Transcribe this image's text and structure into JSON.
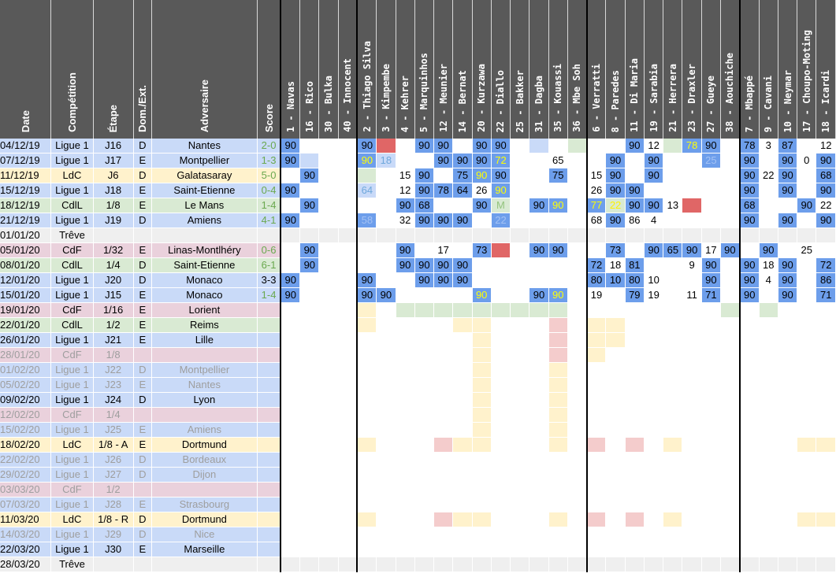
{
  "headers": {
    "date": "Date",
    "competition": "Compétition",
    "etape": "Étape",
    "domext": "Dom./Ext.",
    "adversaire": "Adversaire",
    "score": "Score"
  },
  "players": [
    "1 - Navas",
    "16 - Rico",
    "30 - Bulka",
    "40 - Innocent",
    "2 - Thiago Silva",
    "3 - Kimpembe",
    "4 - Kehrer",
    "5 - Marquinhos",
    "12 - Meunier",
    "14 - Bernat",
    "20 - Kurzawa",
    "22 - Diallo",
    "25 - Bakker",
    "31 - Dagba",
    "35 - Kouassi",
    "36 - Mbe Soh",
    "6 - Verratti",
    "8 - Paredes",
    "11 - Di Maria",
    "19 - Sarabia",
    "21 - Herrera",
    "23 - Draxler",
    "27 - Gueye",
    "38 - Aouchiche",
    "7 - Mbappé",
    "9 - Cavani",
    "10 - Neymar",
    "17 - Choupo-Moting",
    "18 - Icardi"
  ],
  "matches": [
    {
      "date": "04/12/19",
      "comp": "Ligue 1",
      "etape": "J16",
      "de": "D",
      "adv": "Nantes",
      "score": "2-0",
      "res": "w",
      "type": "ligue1",
      "future": false,
      "cells": [
        "S90",
        "",
        "",
        "",
        "S90",
        "I",
        "",
        "S90",
        "S90",
        "",
        "S90",
        "S90",
        "",
        "B",
        "",
        "G",
        "",
        "",
        "S90",
        "12",
        "G",
        "Y78",
        "S90",
        "",
        "S78",
        "3",
        "S87",
        "",
        "12"
      ]
    },
    {
      "date": "07/12/19",
      "comp": "Ligue 1",
      "etape": "J17",
      "de": "E",
      "adv": "Montpellier",
      "score": "1-3",
      "res": "w",
      "type": "ligue1",
      "future": false,
      "cells": [
        "S90",
        "B",
        "",
        "",
        "Y90",
        "P18",
        "",
        "",
        "S90",
        "S90",
        "S90",
        "Y72",
        "",
        "",
        "65",
        "",
        "",
        "S90",
        "",
        "S90",
        "",
        "",
        "Q25",
        "",
        "S90",
        "",
        "S90",
        "0",
        "S90"
      ]
    },
    {
      "date": "11/12/19",
      "comp": "LdC",
      "etape": "J6",
      "de": "D",
      "adv": "Galatasaray",
      "score": "5-0",
      "res": "w",
      "type": "ldc",
      "future": false,
      "cells": [
        "",
        "S90",
        "",
        "",
        "G",
        "",
        "15",
        "S90",
        "",
        "S75",
        "Y90",
        "S90",
        "",
        "",
        "S75",
        "",
        "15",
        "S90",
        "",
        "S90",
        "",
        "",
        "",
        "",
        "S90",
        "22",
        "S90",
        "",
        "S68"
      ]
    },
    {
      "date": "15/12/19",
      "comp": "Ligue 1",
      "etape": "J18",
      "de": "E",
      "adv": "Saint-Etienne",
      "score": "0-4",
      "res": "w",
      "type": "ligue1",
      "future": false,
      "cells": [
        "S90",
        "",
        "",
        "",
        "P64",
        "",
        "12",
        "S90",
        "S78",
        "S64",
        "26",
        "Y90",
        "",
        "",
        "",
        "",
        "26",
        "S90",
        "S90",
        "",
        "",
        "",
        "",
        "",
        "S90",
        "",
        "S90",
        "",
        "S90"
      ]
    },
    {
      "date": "18/12/19",
      "comp": "CdlL",
      "etape": "1/8",
      "de": "E",
      "adv": "Le Mans",
      "score": "1-4",
      "res": "w",
      "type": "cdl",
      "future": false,
      "cells": [
        "",
        "S90",
        "",
        "",
        "",
        "",
        "S90",
        "S68",
        "",
        "",
        "S90",
        "GM",
        "",
        "S90",
        "Y90",
        "",
        "Y77",
        "G22",
        "S90",
        "S90",
        "13",
        "I",
        "",
        "",
        "S68",
        "",
        "",
        "S90",
        "22"
      ]
    },
    {
      "date": "21/12/19",
      "comp": "Ligue 1",
      "etape": "J19",
      "de": "D",
      "adv": "Amiens",
      "score": "4-1",
      "res": "w",
      "type": "ligue1",
      "future": false,
      "cells": [
        "S90",
        "",
        "",
        "",
        "Q58",
        "",
        "32",
        "S90",
        "S90",
        "S90",
        "",
        "Q22",
        "",
        "",
        "",
        "",
        "68",
        "S90",
        "86",
        "4",
        "",
        "",
        "",
        "",
        "S90",
        "",
        "S90",
        "",
        "S90"
      ]
    },
    {
      "date": "01/01/20",
      "comp": "Trêve",
      "etape": "",
      "de": "",
      "adv": "",
      "score": "",
      "res": "",
      "type": "treve",
      "future": false,
      "cells": [
        "R",
        "R",
        "R",
        "R",
        "R",
        "R",
        "R",
        "R",
        "R",
        "R",
        "R",
        "R",
        "R",
        "R",
        "R",
        "R",
        "R",
        "R",
        "R",
        "R",
        "R",
        "R",
        "R",
        "R",
        "R",
        "R",
        "R",
        "R",
        "R"
      ]
    },
    {
      "date": "05/01/20",
      "comp": "CdF",
      "etape": "1/32",
      "de": "E",
      "adv": "Linas-Montlhéry",
      "score": "0-6",
      "res": "w",
      "type": "cdf",
      "future": false,
      "cells": [
        "",
        "S90",
        "",
        "",
        "",
        "",
        "S90",
        "",
        "17",
        "",
        "S73",
        "I",
        "",
        "S90",
        "S90",
        "",
        "",
        "S73",
        "",
        "S90",
        "S65",
        "S90",
        "17",
        "S90",
        "",
        "S90",
        "",
        "25",
        ""
      ]
    },
    {
      "date": "08/01/20",
      "comp": "CdlL",
      "etape": "1/4",
      "de": "D",
      "adv": "Saint-Etienne",
      "score": "6-1",
      "res": "w",
      "type": "cdl",
      "future": false,
      "cells": [
        "",
        "S90",
        "",
        "",
        "",
        "",
        "S90",
        "S90",
        "S90",
        "S90",
        "",
        "",
        "",
        "",
        "",
        "",
        "S72",
        "18",
        "S81",
        "",
        "",
        "9",
        "S90",
        "",
        "S90",
        "18",
        "S90",
        "",
        "S72"
      ]
    },
    {
      "date": "12/01/20",
      "comp": "Ligue 1",
      "etape": "J20",
      "de": "D",
      "adv": "Monaco",
      "score": "3-3",
      "res": "d",
      "type": "ligue1",
      "future": false,
      "cells": [
        "S90",
        "",
        "",
        "",
        "S90",
        "",
        "",
        "S90",
        "S90",
        "S90",
        "",
        "",
        "",
        "",
        "",
        "",
        "S80",
        "S10",
        "S80",
        "10",
        "",
        "",
        "S90",
        "",
        "S90",
        "4",
        "S90",
        "",
        "S86"
      ]
    },
    {
      "date": "15/01/20",
      "comp": "Ligue 1",
      "etape": "J15",
      "de": "E",
      "adv": "Monaco",
      "score": "1-4",
      "res": "w",
      "type": "ligue1",
      "future": false,
      "cells": [
        "S90",
        "",
        "",
        "",
        "S90",
        "S90",
        "",
        "",
        "",
        "",
        "Y90",
        "",
        "",
        "S90",
        "Y90",
        "",
        "19",
        "",
        "S79",
        "19",
        "",
        "11",
        "S71",
        "",
        "S90",
        "",
        "S90",
        "",
        "S71"
      ]
    },
    {
      "date": "19/01/20",
      "comp": "CdF",
      "etape": "1/16",
      "de": "E",
      "adv": "Lorient",
      "score": "",
      "res": "",
      "type": "cdf",
      "future": false,
      "cells": [
        "",
        "",
        "",
        "",
        "Y",
        "",
        "L",
        "L",
        "L",
        "L",
        "L",
        "L",
        "L",
        "L",
        "L",
        "",
        "",
        "",
        "",
        "",
        "",
        "",
        "",
        "L",
        "",
        "L",
        "",
        "",
        ""
      ]
    },
    {
      "date": "22/01/20",
      "comp": "CdlL",
      "etape": "1/2",
      "de": "E",
      "adv": "Reims",
      "score": "",
      "res": "",
      "type": "cdl",
      "future": false,
      "cells": [
        "",
        "",
        "",
        "",
        "Y",
        "",
        "",
        "",
        "",
        "Y",
        "Y",
        "",
        "",
        "",
        "K",
        "",
        "Y",
        "Y",
        "",
        "",
        "",
        "",
        "",
        "",
        "",
        "",
        "",
        "",
        ""
      ]
    },
    {
      "date": "26/01/20",
      "comp": "Ligue 1",
      "etape": "J21",
      "de": "E",
      "adv": "Lille",
      "score": "",
      "res": "",
      "type": "ligue1",
      "future": false,
      "cells": [
        "",
        "",
        "",
        "",
        "",
        "",
        "",
        "",
        "",
        "",
        "Y",
        "",
        "",
        "",
        "K",
        "",
        "Y",
        "Y",
        "",
        "",
        "",
        "",
        "",
        "",
        "",
        "",
        "",
        "",
        ""
      ]
    },
    {
      "date": "28/01/20",
      "comp": "CdF",
      "etape": "1/8",
      "de": "",
      "adv": "",
      "score": "",
      "res": "",
      "type": "cdf",
      "future": true,
      "cells": [
        "",
        "",
        "",
        "",
        "",
        "",
        "",
        "",
        "",
        "",
        "Y",
        "",
        "",
        "",
        "K",
        "",
        "Y",
        "",
        "",
        "",
        "",
        "",
        "",
        "",
        "",
        "",
        "",
        "",
        ""
      ]
    },
    {
      "date": "01/02/20",
      "comp": "Ligue 1",
      "etape": "J22",
      "de": "D",
      "adv": "Montpellier",
      "score": "",
      "res": "",
      "type": "ligue1",
      "future": true,
      "cells": [
        "",
        "",
        "",
        "",
        "",
        "",
        "",
        "",
        "",
        "",
        "Y",
        "",
        "",
        "",
        "Y",
        "",
        "",
        "",
        "",
        "",
        "",
        "",
        "",
        "",
        "",
        "",
        "",
        "",
        ""
      ]
    },
    {
      "date": "05/02/20",
      "comp": "Ligue 1",
      "etape": "J23",
      "de": "E",
      "adv": "Nantes",
      "score": "",
      "res": "",
      "type": "ligue1",
      "future": true,
      "cells": [
        "",
        "",
        "",
        "",
        "",
        "",
        "",
        "",
        "",
        "",
        "Y",
        "",
        "",
        "",
        "Y",
        "",
        "",
        "",
        "",
        "",
        "",
        "",
        "",
        "",
        "",
        "",
        "",
        "",
        ""
      ]
    },
    {
      "date": "09/02/20",
      "comp": "Ligue 1",
      "etape": "J24",
      "de": "D",
      "adv": "Lyon",
      "score": "",
      "res": "",
      "type": "ligue1",
      "future": false,
      "cells": [
        "",
        "",
        "",
        "",
        "",
        "",
        "",
        "",
        "",
        "",
        "Y",
        "",
        "",
        "",
        "Y",
        "",
        "",
        "",
        "",
        "",
        "",
        "",
        "",
        "",
        "",
        "",
        "",
        "",
        ""
      ]
    },
    {
      "date": "12/02/20",
      "comp": "CdF",
      "etape": "1/4",
      "de": "",
      "adv": "",
      "score": "",
      "res": "",
      "type": "cdf",
      "future": true,
      "cells": [
        "",
        "",
        "",
        "",
        "",
        "",
        "",
        "",
        "",
        "",
        "Y",
        "",
        "",
        "",
        "Y",
        "",
        "",
        "",
        "",
        "",
        "",
        "",
        "",
        "",
        "",
        "",
        "",
        "",
        ""
      ]
    },
    {
      "date": "15/02/20",
      "comp": "Ligue 1",
      "etape": "J25",
      "de": "E",
      "adv": "Amiens",
      "score": "",
      "res": "",
      "type": "ligue1",
      "future": true,
      "cells": [
        "",
        "",
        "",
        "",
        "",
        "",
        "",
        "",
        "",
        "",
        "Y",
        "",
        "",
        "",
        "Y",
        "",
        "",
        "",
        "",
        "",
        "",
        "",
        "",
        "",
        "",
        "",
        "",
        "",
        ""
      ]
    },
    {
      "date": "18/02/20",
      "comp": "LdC",
      "etape": "1/8 - A",
      "de": "E",
      "adv": "Dortmund",
      "score": "",
      "res": "",
      "type": "ldc",
      "future": false,
      "cells": [
        "",
        "",
        "",
        "",
        "Y",
        "",
        "",
        "",
        "K",
        "Y",
        "Y",
        "",
        "",
        "",
        "Y",
        "",
        "K",
        "",
        "K",
        "",
        "Y",
        "",
        "",
        "",
        "",
        "",
        "",
        "Y",
        "Y"
      ]
    },
    {
      "date": "22/02/20",
      "comp": "Ligue 1",
      "etape": "J26",
      "de": "D",
      "adv": "Bordeaux",
      "score": "",
      "res": "",
      "type": "ligue1",
      "future": true,
      "cells": [
        "",
        "",
        "",
        "",
        "",
        "",
        "",
        "",
        "",
        "",
        "",
        "",
        "",
        "",
        "",
        "",
        "",
        "",
        "",
        "",
        "",
        "",
        "",
        "",
        "",
        "",
        "",
        "",
        ""
      ]
    },
    {
      "date": "29/02/20",
      "comp": "Ligue 1",
      "etape": "J27",
      "de": "D",
      "adv": "Dijon",
      "score": "",
      "res": "",
      "type": "ligue1",
      "future": true,
      "cells": [
        "",
        "",
        "",
        "",
        "",
        "",
        "",
        "",
        "",
        "",
        "",
        "",
        "",
        "",
        "",
        "",
        "",
        "",
        "",
        "",
        "",
        "",
        "",
        "",
        "",
        "",
        "",
        "",
        ""
      ]
    },
    {
      "date": "03/03/20",
      "comp": "CdF",
      "etape": "1/2",
      "de": "",
      "adv": "",
      "score": "",
      "res": "",
      "type": "cdf",
      "future": true,
      "cells": [
        "",
        "",
        "",
        "",
        "",
        "",
        "",
        "",
        "",
        "",
        "",
        "",
        "",
        "",
        "",
        "",
        "",
        "",
        "",
        "",
        "",
        "",
        "",
        "",
        "",
        "",
        "",
        "",
        ""
      ]
    },
    {
      "date": "07/03/20",
      "comp": "Ligue 1",
      "etape": "J28",
      "de": "E",
      "adv": "Strasbourg",
      "score": "",
      "res": "",
      "type": "ligue1",
      "future": true,
      "cells": [
        "",
        "",
        "",
        "",
        "",
        "",
        "",
        "",
        "",
        "",
        "",
        "",
        "",
        "",
        "",
        "",
        "",
        "",
        "",
        "",
        "",
        "",
        "",
        "",
        "",
        "",
        "",
        "",
        ""
      ]
    },
    {
      "date": "11/03/20",
      "comp": "LdC",
      "etape": "1/8 - R",
      "de": "D",
      "adv": "Dortmund",
      "score": "",
      "res": "",
      "type": "ldc",
      "future": false,
      "cells": [
        "",
        "",
        "",
        "",
        "Y",
        "",
        "",
        "",
        "K",
        "Y",
        "Y",
        "",
        "",
        "",
        "Y",
        "",
        "K",
        "",
        "K",
        "",
        "Y",
        "",
        "",
        "",
        "",
        "",
        "",
        "Y",
        "Y"
      ]
    },
    {
      "date": "14/03/20",
      "comp": "Ligue 1",
      "etape": "J29",
      "de": "D",
      "adv": "Nice",
      "score": "",
      "res": "",
      "type": "ligue1",
      "future": true,
      "cells": [
        "",
        "",
        "",
        "",
        "",
        "",
        "",
        "",
        "",
        "",
        "",
        "",
        "",
        "",
        "",
        "",
        "",
        "",
        "",
        "",
        "",
        "",
        "",
        "",
        "",
        "",
        "",
        "",
        ""
      ]
    },
    {
      "date": "22/03/20",
      "comp": "Ligue 1",
      "etape": "J30",
      "de": "E",
      "adv": "Marseille",
      "score": "",
      "res": "",
      "type": "ligue1",
      "future": false,
      "cells": [
        "",
        "",
        "",
        "",
        "",
        "",
        "",
        "",
        "",
        "",
        "",
        "",
        "",
        "",
        "",
        "",
        "",
        "",
        "",
        "",
        "",
        "",
        "",
        "",
        "",
        "",
        "",
        "",
        ""
      ]
    },
    {
      "date": "28/03/20",
      "comp": "Trêve",
      "etape": "",
      "de": "",
      "adv": "",
      "score": "",
      "res": "",
      "type": "treve",
      "future": false,
      "cells": [
        "R",
        "R",
        "R",
        "R",
        "R",
        "R",
        "R",
        "R",
        "R",
        "R",
        "R",
        "R",
        "R",
        "R",
        "R",
        "R",
        "R",
        "R",
        "R",
        "R",
        "R",
        "R",
        "R",
        "R",
        "R",
        "R",
        "R",
        "R",
        "R"
      ]
    }
  ]
}
